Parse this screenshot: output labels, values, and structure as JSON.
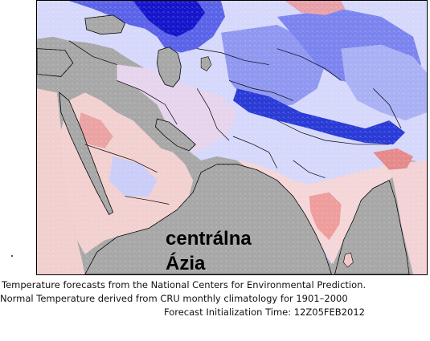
{
  "map": {
    "region_label_line1": "centrálna",
    "region_label_line2": "Ázia",
    "colors": {
      "land_gray": "#a7a7a7",
      "warm_light": "#f6d6d6",
      "warm_mid": "#f0a8a8",
      "warm_strong": "#e06060",
      "cool_light": "#dcdcff",
      "cool_mid": "#9aa2f2",
      "cool_strong": "#3a48e0",
      "cool_deep": "#1010c8",
      "border": "#000000"
    }
  },
  "caption": {
    "line1": "Temperature  forecasts from the National Centers for Environmental Prediction.",
    "line2": "Normal Temperature derived from CRU monthly climatology for 1901–2000",
    "line3": "Forecast Initialization Time: 12Z05FEB2012"
  }
}
